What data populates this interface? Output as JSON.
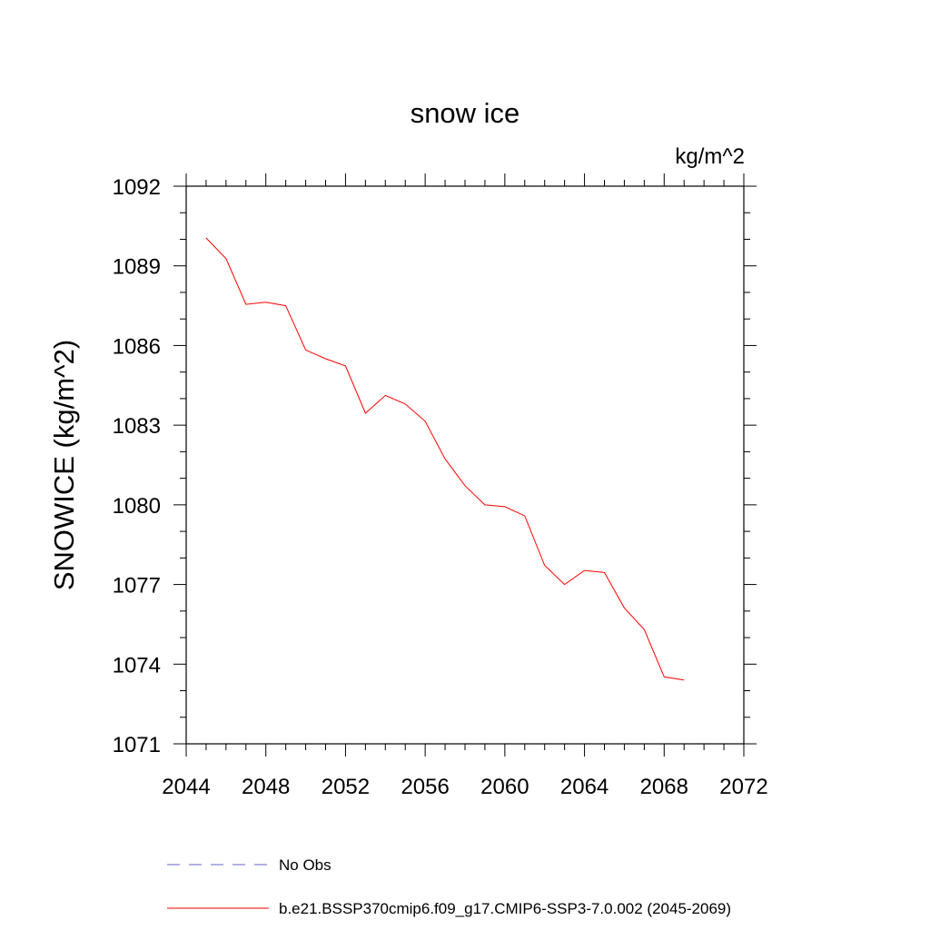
{
  "chart_data": {
    "type": "line",
    "title": "snow ice",
    "units_label": "kg/m^2",
    "xlabel": "",
    "ylabel": "SNOWICE  (kg/m^2)",
    "xlim": [
      2044,
      2072
    ],
    "ylim": [
      1071,
      1092
    ],
    "x_ticks": [
      "2044",
      "2048",
      "2052",
      "2056",
      "2060",
      "2064",
      "2068",
      "2072"
    ],
    "y_ticks": [
      "1071",
      "1074",
      "1077",
      "1080",
      "1083",
      "1086",
      "1089",
      "1092"
    ],
    "grid": false,
    "legend_position": "bottom",
    "series": [
      {
        "name": "No Obs",
        "color": "#6666cc",
        "style": "dashed",
        "x": [],
        "y": []
      },
      {
        "name": "b.e21.BSSP370cmip6.f09_g17.CMIP6-SSP3-7.0.002 (2045-2069)",
        "color": "#ff0000",
        "style": "solid",
        "x": [
          2045,
          2046,
          2047,
          2048,
          2049,
          2050,
          2051,
          2052,
          2053,
          2054,
          2055,
          2056,
          2057,
          2058,
          2059,
          2060,
          2061,
          2062,
          2063,
          2064,
          2065,
          2066,
          2067,
          2068,
          2069
        ],
        "y": [
          1090.05,
          1089.27,
          1087.55,
          1087.63,
          1087.5,
          1085.83,
          1085.5,
          1085.23,
          1083.45,
          1084.12,
          1083.8,
          1083.15,
          1081.73,
          1080.72,
          1080.0,
          1079.93,
          1079.58,
          1077.72,
          1077.0,
          1077.53,
          1077.45,
          1076.12,
          1075.3,
          1073.52,
          1073.4
        ]
      }
    ]
  }
}
